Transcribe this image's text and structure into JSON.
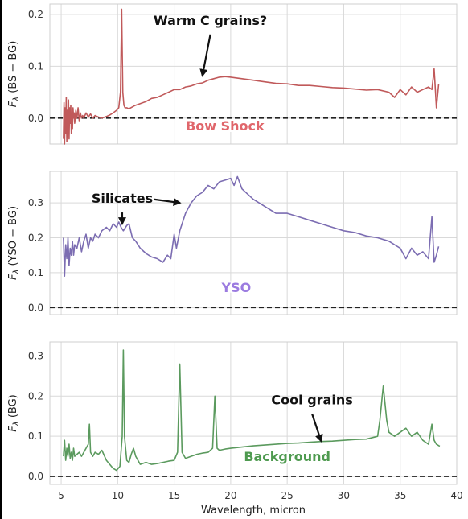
{
  "chart_data": [
    {
      "type": "line",
      "ylabel": "F_λ (BS − BG)",
      "ylabel_main": "F",
      "ylabel_sub": "λ",
      "ylabel_rest": " (BS − BG)",
      "xlim": [
        4,
        40
      ],
      "ylim": [
        -0.05,
        0.22
      ],
      "yticks": [
        0.0,
        0.1,
        0.2
      ],
      "ytick_labels": [
        "0.0",
        "0.1",
        "0.2"
      ],
      "grid": true,
      "zero_line": 0,
      "series": [
        {
          "color": "#c0595a",
          "x": [
            5.2,
            5.25,
            5.3,
            5.35,
            5.4,
            5.45,
            5.5,
            5.55,
            5.6,
            5.65,
            5.7,
            5.75,
            5.8,
            5.85,
            5.9,
            5.95,
            6.0,
            6.05,
            6.1,
            6.15,
            6.2,
            6.3,
            6.4,
            6.5,
            6.6,
            6.7,
            6.8,
            6.9,
            7.0,
            7.2,
            7.4,
            7.6,
            7.8,
            8.0,
            8.3,
            8.6,
            9.0,
            9.3,
            9.6,
            9.9,
            10.1,
            10.25,
            10.35,
            10.45,
            10.55,
            10.65,
            10.8,
            11.0,
            11.5,
            12,
            12.5,
            13,
            13.5,
            14,
            14.5,
            15,
            15.5,
            16,
            16.5,
            17,
            17.5,
            18,
            18.5,
            19,
            19.5,
            20,
            21,
            22,
            23,
            24,
            25,
            26,
            27,
            28,
            29,
            30,
            31,
            32,
            33,
            34,
            34.5,
            35,
            35.5,
            36,
            36.5,
            37,
            37.5,
            37.8,
            38,
            38.2,
            38.4
          ],
          "y": [
            -0.04,
            0.03,
            -0.05,
            0.02,
            -0.03,
            0.04,
            -0.045,
            0.015,
            -0.02,
            0.035,
            -0.04,
            0.02,
            -0.01,
            0.025,
            -0.03,
            0.01,
            -0.02,
            0.02,
            0.0,
            0.01,
            -0.01,
            0.015,
            0.0,
            0.02,
            -0.005,
            0.01,
            0.0,
            0.005,
            0.0,
            0.01,
            0.002,
            0.008,
            0.0,
            0.005,
            0.002,
            0.0,
            0.003,
            0.006,
            0.01,
            0.015,
            0.02,
            0.05,
            0.21,
            0.05,
            0.025,
            0.02,
            0.02,
            0.018,
            0.024,
            0.028,
            0.032,
            0.038,
            0.04,
            0.045,
            0.05,
            0.055,
            0.055,
            0.06,
            0.062,
            0.066,
            0.068,
            0.073,
            0.076,
            0.079,
            0.08,
            0.079,
            0.076,
            0.073,
            0.07,
            0.067,
            0.066,
            0.063,
            0.063,
            0.061,
            0.059,
            0.058,
            0.056,
            0.054,
            0.055,
            0.05,
            0.04,
            0.055,
            0.045,
            0.06,
            0.05,
            0.055,
            0.06,
            0.055,
            0.095,
            0.02,
            0.065
          ]
        }
      ],
      "annotations": [
        {
          "text": "Warm C grains?",
          "xy": [
            17.5,
            0.082
          ],
          "xytext": [
            18.2,
            0.18
          ]
        }
      ],
      "panel_label": {
        "text": "Bow Shock",
        "color": "#e0666b",
        "x": 19.5,
        "y": -0.024
      }
    },
    {
      "type": "line",
      "ylabel": "F_λ (YSO − BG)",
      "ylabel_main": "F",
      "ylabel_sub": "λ",
      "ylabel_rest": " (YSO − BG)",
      "xlim": [
        4,
        40
      ],
      "ylim": [
        -0.02,
        0.39
      ],
      "yticks": [
        0.0,
        0.1,
        0.2,
        0.3
      ],
      "ytick_labels": [
        "0.0",
        "0.1",
        "0.2",
        "0.3"
      ],
      "grid": true,
      "zero_line": 0,
      "series": [
        {
          "color": "#7c6db2",
          "x": [
            5.2,
            5.3,
            5.4,
            5.5,
            5.6,
            5.7,
            5.8,
            5.9,
            6.0,
            6.1,
            6.2,
            6.4,
            6.6,
            6.8,
            7.0,
            7.2,
            7.4,
            7.6,
            7.8,
            8.0,
            8.3,
            8.6,
            9.0,
            9.3,
            9.6,
            9.9,
            10.1,
            10.3,
            10.5,
            10.8,
            11.0,
            11.3,
            11.6,
            12.0,
            12.5,
            13.0,
            13.5,
            14.0,
            14.4,
            14.7,
            15.0,
            15.2,
            15.5,
            16.0,
            16.5,
            17,
            17.5,
            18,
            18.5,
            19,
            19.5,
            20,
            20.3,
            20.6,
            21,
            22,
            23,
            24,
            25,
            26,
            27,
            28,
            29,
            30,
            31,
            32,
            33,
            34,
            35,
            35.5,
            36,
            36.5,
            37,
            37.5,
            37.8,
            38,
            38.2,
            38.4
          ],
          "y": [
            0.2,
            0.09,
            0.18,
            0.14,
            0.2,
            0.12,
            0.17,
            0.15,
            0.19,
            0.15,
            0.18,
            0.17,
            0.2,
            0.16,
            0.19,
            0.21,
            0.17,
            0.2,
            0.19,
            0.21,
            0.2,
            0.22,
            0.23,
            0.22,
            0.24,
            0.23,
            0.245,
            0.23,
            0.22,
            0.235,
            0.24,
            0.2,
            0.19,
            0.17,
            0.155,
            0.145,
            0.14,
            0.13,
            0.15,
            0.14,
            0.21,
            0.17,
            0.22,
            0.27,
            0.3,
            0.32,
            0.33,
            0.35,
            0.34,
            0.36,
            0.365,
            0.37,
            0.35,
            0.375,
            0.34,
            0.31,
            0.29,
            0.27,
            0.27,
            0.26,
            0.25,
            0.24,
            0.23,
            0.22,
            0.215,
            0.205,
            0.2,
            0.19,
            0.17,
            0.14,
            0.17,
            0.15,
            0.16,
            0.14,
            0.26,
            0.13,
            0.15,
            0.175
          ]
        }
      ],
      "annotations": [
        {
          "text": "Silicates",
          "xy": [
            10.4,
            0.24
          ],
          "xytext": [
            10.4,
            0.3
          ]
        },
        {
          "text": "",
          "xy": [
            15.5,
            0.3
          ],
          "xytext": [
            13.2,
            0.31
          ]
        }
      ],
      "panel_label": {
        "text": "YSO",
        "color": "#9b7be0",
        "x": 20.5,
        "y": 0.045
      }
    },
    {
      "type": "line",
      "ylabel": "F_λ (BG)",
      "ylabel_main": "F",
      "ylabel_sub": "λ",
      "ylabel_rest": " (BG)",
      "xlabel": "Wavelength, micron",
      "xlim": [
        4,
        40
      ],
      "xticks": [
        5,
        10,
        15,
        20,
        25,
        30,
        35,
        40
      ],
      "xtick_labels": [
        "5",
        "10",
        "15",
        "20",
        "25",
        "30",
        "35",
        "40"
      ],
      "ylim": [
        -0.02,
        0.335
      ],
      "yticks": [
        0.0,
        0.1,
        0.2,
        0.3
      ],
      "ytick_labels": [
        "0.0",
        "0.1",
        "0.2",
        "0.3"
      ],
      "grid": true,
      "zero_line": 0,
      "series": [
        {
          "color": "#5b9a5e",
          "x": [
            5.2,
            5.3,
            5.4,
            5.5,
            5.6,
            5.7,
            5.8,
            5.9,
            6.0,
            6.1,
            6.2,
            6.4,
            6.6,
            6.8,
            7.0,
            7.2,
            7.4,
            7.5,
            7.6,
            7.8,
            8.0,
            8.3,
            8.6,
            9.0,
            9.3,
            9.6,
            9.9,
            10.2,
            10.4,
            10.5,
            10.6,
            10.8,
            11.0,
            11.2,
            11.4,
            11.6,
            12.0,
            12.5,
            13,
            13.5,
            14,
            14.5,
            15,
            15.3,
            15.5,
            15.7,
            16,
            16.5,
            17,
            17.5,
            18,
            18.4,
            18.6,
            18.8,
            19.0,
            19.5,
            20,
            21,
            22,
            23,
            24,
            25,
            26,
            27,
            28,
            29,
            30,
            31,
            32,
            33,
            33.2,
            33.5,
            33.8,
            34,
            34.5,
            35,
            35.5,
            36,
            36.5,
            37,
            37.5,
            37.8,
            38,
            38.2,
            38.5
          ],
          "y": [
            0.05,
            0.09,
            0.04,
            0.07,
            0.05,
            0.08,
            0.045,
            0.06,
            0.04,
            0.07,
            0.05,
            0.055,
            0.06,
            0.05,
            0.06,
            0.07,
            0.08,
            0.13,
            0.06,
            0.05,
            0.06,
            0.055,
            0.065,
            0.04,
            0.03,
            0.02,
            0.015,
            0.025,
            0.1,
            0.315,
            0.1,
            0.04,
            0.035,
            0.055,
            0.07,
            0.05,
            0.03,
            0.035,
            0.03,
            0.032,
            0.035,
            0.038,
            0.04,
            0.06,
            0.28,
            0.06,
            0.045,
            0.05,
            0.055,
            0.058,
            0.06,
            0.07,
            0.2,
            0.07,
            0.065,
            0.068,
            0.07,
            0.073,
            0.076,
            0.078,
            0.08,
            0.082,
            0.083,
            0.085,
            0.087,
            0.088,
            0.09,
            0.092,
            0.093,
            0.1,
            0.14,
            0.225,
            0.14,
            0.11,
            0.1,
            0.11,
            0.12,
            0.1,
            0.11,
            0.09,
            0.08,
            0.13,
            0.09,
            0.08,
            0.075
          ]
        }
      ],
      "annotations": [
        {
          "text": "Cool grains",
          "xy": [
            28,
            0.088
          ],
          "xytext": [
            27.2,
            0.18
          ]
        }
      ],
      "panel_label": {
        "text": "Background",
        "color": "#4e9a4f",
        "x": 25,
        "y": 0.038
      }
    }
  ]
}
